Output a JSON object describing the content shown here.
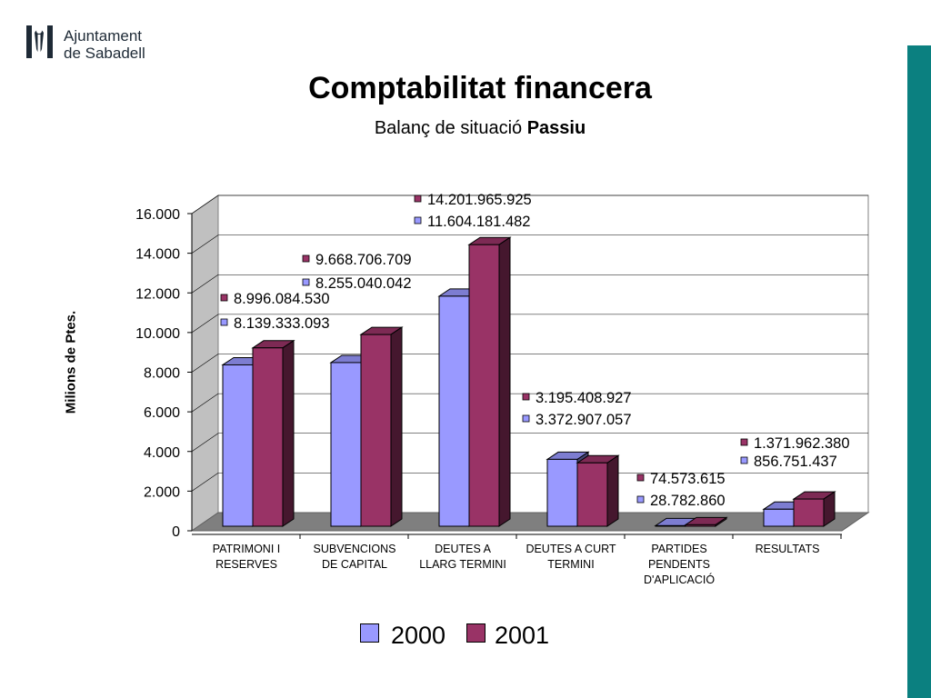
{
  "logo": {
    "line1": "Ajuntament",
    "line2": "de Sabadell"
  },
  "title": "Comptabilitat financera",
  "subtitle": {
    "text": "Balanç de situació",
    "bold": "Passiu"
  },
  "colors": {
    "series2000": "#9999ff",
    "series2001": "#993366",
    "stripe": "#0b8080"
  },
  "chart_data": {
    "type": "bar",
    "ylabel": "Milions de Ptes.",
    "ylim": [
      0,
      16000
    ],
    "yticks": [
      "0",
      "2.000",
      "4.000",
      "6.000",
      "8.000",
      "10.000",
      "12.000",
      "14.000",
      "16.000"
    ],
    "categories": [
      [
        "PATRIMONI I",
        "RESERVES"
      ],
      [
        "SUBVENCIONS",
        "DE CAPITAL"
      ],
      [
        "DEUTES A",
        "LLARG TERMINI"
      ],
      [
        "DEUTES A CURT",
        "TERMINI"
      ],
      [
        "PARTIDES",
        "PENDENTS",
        "D'APLICACIÓ"
      ],
      [
        "RESULTATS"
      ]
    ],
    "series": [
      {
        "name": "2000",
        "values": [
          8139.3,
          8255.0,
          11604.2,
          3372.9,
          28.8,
          856.8
        ],
        "labels": [
          "8.139.333.093",
          "8.255.040.042",
          "11.604.181.482",
          "3.372.907.057",
          "28.782.860",
          "856.751.437"
        ]
      },
      {
        "name": "2001",
        "values": [
          8996.1,
          9668.7,
          14202.0,
          3195.4,
          74.6,
          1372.0
        ],
        "labels": [
          "8.996.084.530",
          "9.668.706.709",
          "14.201.965.925",
          "3.195.408.927",
          "74.573.615",
          "1.371.962.380"
        ]
      }
    ],
    "legend": "bottom",
    "grid": true
  }
}
